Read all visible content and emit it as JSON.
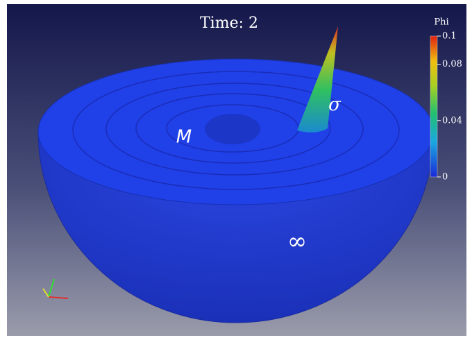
{
  "title": "Time: 2",
  "labels": {
    "manifold": "M",
    "source": "σ",
    "boundary": "∞"
  },
  "colorbar": {
    "title": "Phi",
    "ticks": [
      0.1,
      0.08,
      0.04,
      0
    ]
  }
}
